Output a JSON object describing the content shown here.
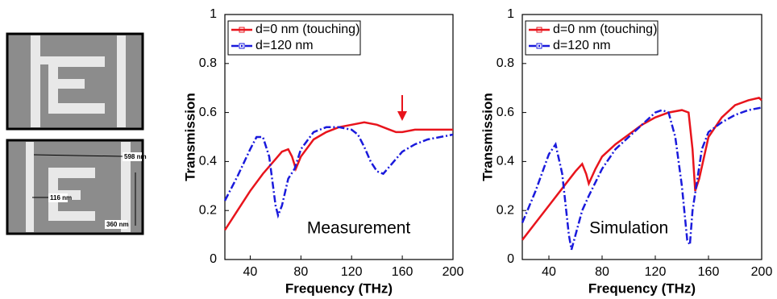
{
  "images": {
    "annotations": [
      "598 nm",
      "116 nm",
      "360 nm"
    ]
  },
  "chart_data": [
    {
      "type": "line",
      "annotation": "Measurement",
      "x_label": "Frequency (THz)",
      "y_label": "Transmission",
      "xlim": [
        20,
        200
      ],
      "ylim": [
        0,
        1
      ],
      "xticks": [
        40,
        80,
        120,
        160,
        200
      ],
      "yticks": [
        0,
        0.2,
        0.4,
        0.6,
        0.8,
        1
      ],
      "legend": "upper left",
      "series": [
        {
          "name": "d=0 nm (touching)",
          "color": "#e8141c",
          "x": [
            20,
            30,
            40,
            50,
            60,
            65,
            70,
            73,
            76,
            80,
            90,
            100,
            110,
            120,
            130,
            140,
            150,
            155,
            160,
            170,
            180,
            190,
            200
          ],
          "values": [
            0.12,
            0.2,
            0.28,
            0.35,
            0.41,
            0.44,
            0.45,
            0.42,
            0.37,
            0.42,
            0.49,
            0.52,
            0.54,
            0.55,
            0.56,
            0.55,
            0.53,
            0.52,
            0.52,
            0.53,
            0.53,
            0.53,
            0.53
          ]
        },
        {
          "name": "d=120 nm",
          "color": "#1a1adc",
          "x": [
            20,
            30,
            40,
            45,
            50,
            55,
            60,
            62,
            65,
            70,
            75,
            80,
            90,
            100,
            110,
            120,
            125,
            130,
            135,
            140,
            145,
            150,
            160,
            170,
            180,
            190,
            200
          ],
          "values": [
            0.24,
            0.34,
            0.45,
            0.5,
            0.5,
            0.42,
            0.22,
            0.18,
            0.22,
            0.33,
            0.37,
            0.45,
            0.52,
            0.54,
            0.54,
            0.53,
            0.51,
            0.46,
            0.4,
            0.36,
            0.35,
            0.38,
            0.44,
            0.47,
            0.49,
            0.5,
            0.51
          ]
        }
      ]
    },
    {
      "type": "line",
      "annotation": "Simulation",
      "x_label": "Frequency (THz)",
      "y_label": "Transmission",
      "xlim": [
        20,
        200
      ],
      "ylim": [
        0,
        1
      ],
      "xticks": [
        40,
        80,
        120,
        160,
        200
      ],
      "yticks": [
        0,
        0.2,
        0.4,
        0.6,
        0.8,
        1
      ],
      "legend": "upper left",
      "series": [
        {
          "name": "d=0 nm (touching)",
          "color": "#e8141c",
          "x": [
            20,
            30,
            40,
            50,
            60,
            65,
            68,
            70,
            75,
            80,
            90,
            100,
            110,
            120,
            130,
            140,
            145,
            148,
            150,
            153,
            160,
            170,
            180,
            190,
            198,
            200
          ],
          "values": [
            0.08,
            0.15,
            0.22,
            0.29,
            0.36,
            0.39,
            0.35,
            0.31,
            0.37,
            0.42,
            0.47,
            0.51,
            0.55,
            0.58,
            0.6,
            0.61,
            0.6,
            0.45,
            0.28,
            0.33,
            0.5,
            0.58,
            0.63,
            0.65,
            0.66,
            0.65
          ]
        },
        {
          "name": "d=120 nm",
          "color": "#1a1adc",
          "x": [
            20,
            30,
            40,
            45,
            50,
            55,
            57,
            60,
            65,
            70,
            80,
            90,
            100,
            110,
            120,
            125,
            130,
            135,
            140,
            144,
            146,
            148,
            155,
            160,
            170,
            180,
            190,
            200
          ],
          "values": [
            0.15,
            0.28,
            0.43,
            0.47,
            0.35,
            0.1,
            0.04,
            0.1,
            0.2,
            0.26,
            0.37,
            0.45,
            0.5,
            0.55,
            0.6,
            0.61,
            0.6,
            0.5,
            0.3,
            0.08,
            0.06,
            0.2,
            0.45,
            0.52,
            0.56,
            0.59,
            0.61,
            0.62
          ]
        }
      ]
    }
  ]
}
